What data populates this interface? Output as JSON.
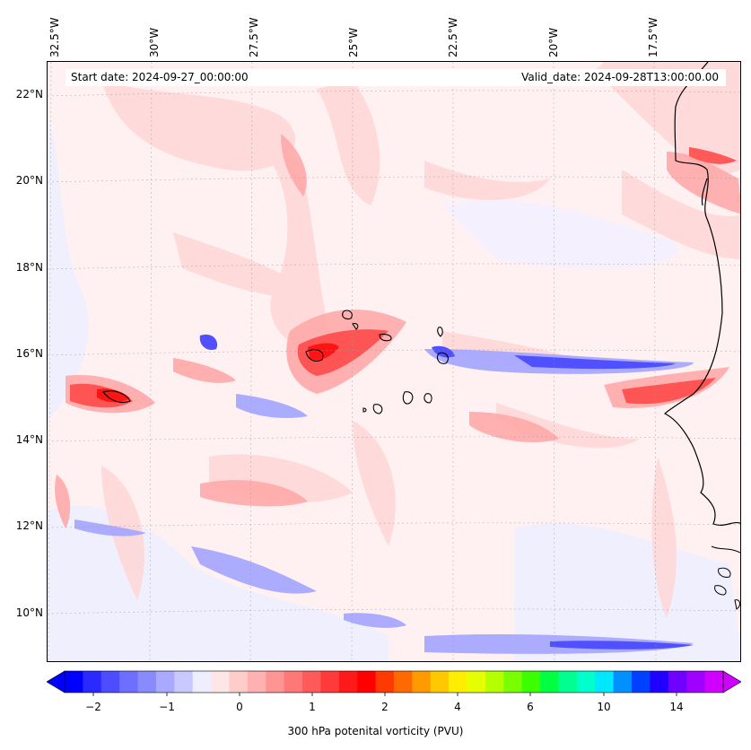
{
  "map": {
    "start_date": "Start date: 2024-09-27_00:00:00",
    "valid_date": "Valid_date: 2024-09-28T13:00:00.00",
    "lon_labels": [
      "32.5°W",
      "30°W",
      "27.5°W",
      "25°W",
      "22.5°W",
      "20°W",
      "17.5°W"
    ],
    "lat_labels": [
      "22°N",
      "20°N",
      "18°N",
      "16°N",
      "14°N",
      "12°N",
      "10°N"
    ],
    "region": "Cape Verde / West Africa",
    "colors": {
      "ocean_base": "#fff1f1",
      "positive_light": "#ffcccc",
      "positive_mid": "#ff8a8a",
      "positive_strong": "#ff2a2a",
      "negative_light": "#d8d8ff",
      "negative_mid": "#9a9aff",
      "negative_strong": "#3434ff",
      "coastline": "#000000"
    }
  },
  "colorbar": {
    "label": "300 hPa potenital vorticity (PVU)",
    "tick_labels": [
      "−2",
      "−1",
      "0",
      "1",
      "2",
      "4",
      "6",
      "10",
      "14"
    ],
    "colors": [
      "#0000ff",
      "#2a2aff",
      "#4d4dff",
      "#6e6eff",
      "#8a8aff",
      "#a9a9ff",
      "#c9c9ff",
      "#eeeeff",
      "#ffe6e6",
      "#ffcccc",
      "#ffb0b0",
      "#ff9494",
      "#ff7878",
      "#ff5a5a",
      "#ff3a3a",
      "#ff1a1a",
      "#ff0000",
      "#ff3a00",
      "#ff6a00",
      "#ff9a00",
      "#ffc800",
      "#ffee00",
      "#e6ff00",
      "#b4ff00",
      "#78ff00",
      "#3cff00",
      "#00ff40",
      "#00ff90",
      "#00ffcc",
      "#00e8ff",
      "#0090ff",
      "#0040ff",
      "#2000ff",
      "#7000ff",
      "#a000ff",
      "#d000ff"
    ]
  }
}
